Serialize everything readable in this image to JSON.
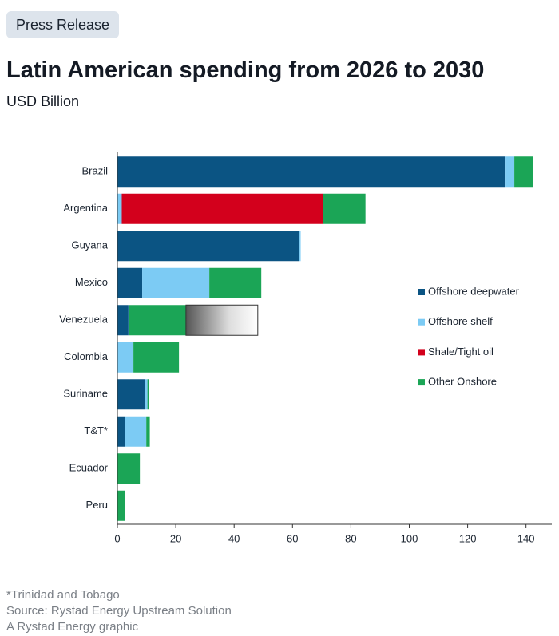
{
  "badge": "Press Release",
  "notes": [
    "*Trinidad and Tobago",
    "Source: Rystad Energy Upstream Solution",
    "A Rystad Energy graphic"
  ],
  "chart_data": {
    "type": "stacked_bar_horizontal",
    "title": "Latin American spending from 2026 to 2030",
    "subtitle": "USD Billion",
    "categories": [
      "Brazil",
      "Argentina",
      "Guyana",
      "Mexico",
      "Venezuela",
      "Colombia",
      "Suriname",
      "T&T*",
      "Ecuador",
      "Peru"
    ],
    "series": [
      {
        "name": "Offshore deepwater",
        "color": "#0b5483",
        "values": [
          133,
          0,
          62.3,
          8.5,
          3.8,
          0,
          9.5,
          2.5,
          0,
          0
        ]
      },
      {
        "name": "Offshore shelf",
        "color": "#7ccbf4",
        "values": [
          3,
          1.5,
          0.5,
          23,
          0.3,
          5.5,
          0.8,
          7.4,
          0,
          0
        ]
      },
      {
        "name": "Shale/Tight oil",
        "color": "#d3001c",
        "values": [
          0,
          69,
          0,
          0,
          0,
          0,
          0,
          0,
          0,
          0
        ]
      },
      {
        "name": "Other Onshore",
        "color": "#1ba556",
        "values": [
          6.3,
          14.5,
          0,
          17.8,
          19.4,
          15.6,
          0.4,
          1.2,
          7.7,
          2.5
        ]
      },
      {
        "color": "gradient",
        "values": [
          0,
          0,
          0,
          0,
          24.6,
          0,
          0,
          0,
          0,
          0
        ]
      }
    ],
    "xlim": [
      0,
      142
    ],
    "xticks": [
      0,
      20,
      40,
      60,
      80,
      100,
      120,
      140
    ],
    "legend": "right"
  }
}
